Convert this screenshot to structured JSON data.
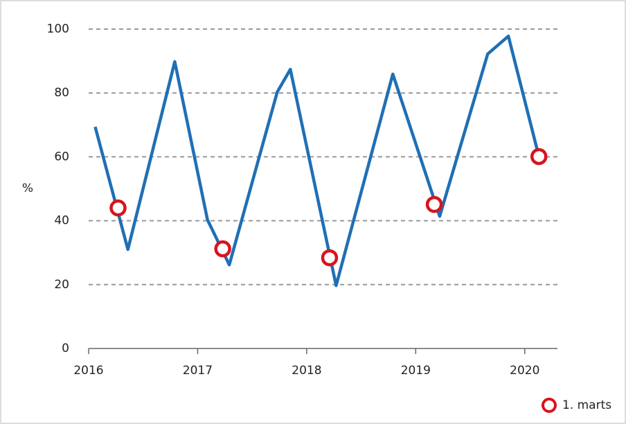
{
  "chart_data": {
    "type": "line",
    "y_label": "%",
    "xlim": [
      2016,
      2020.3
    ],
    "xticks": [
      2016,
      2017,
      2018,
      2019,
      2020
    ],
    "ylim": [
      0,
      100
    ],
    "yticks": [
      0,
      20,
      40,
      60,
      80,
      100
    ],
    "grid": true,
    "legend": "bottom-right",
    "series": [
      {
        "color": "#1f6fb5",
        "x": [
          2016.06,
          2016.36,
          2016.79,
          2017.09,
          2017.29,
          2017.73,
          2017.85,
          2018.27,
          2018.79,
          2019.22,
          2019.66,
          2019.85,
          2020.13
        ],
        "values": [
          69.4,
          31.0,
          89.8,
          40.3,
          26.2,
          80.3,
          87.4,
          19.7,
          85.9,
          41.4,
          92.2,
          97.8,
          60.1
        ]
      },
      {
        "name": "1. marts",
        "color": "#d7141e",
        "marker": "circle",
        "x": [
          2016.27,
          2017.23,
          2018.21,
          2019.17,
          2020.13
        ],
        "values": [
          44.0,
          31.2,
          28.4,
          45.1,
          60.1
        ]
      }
    ]
  }
}
